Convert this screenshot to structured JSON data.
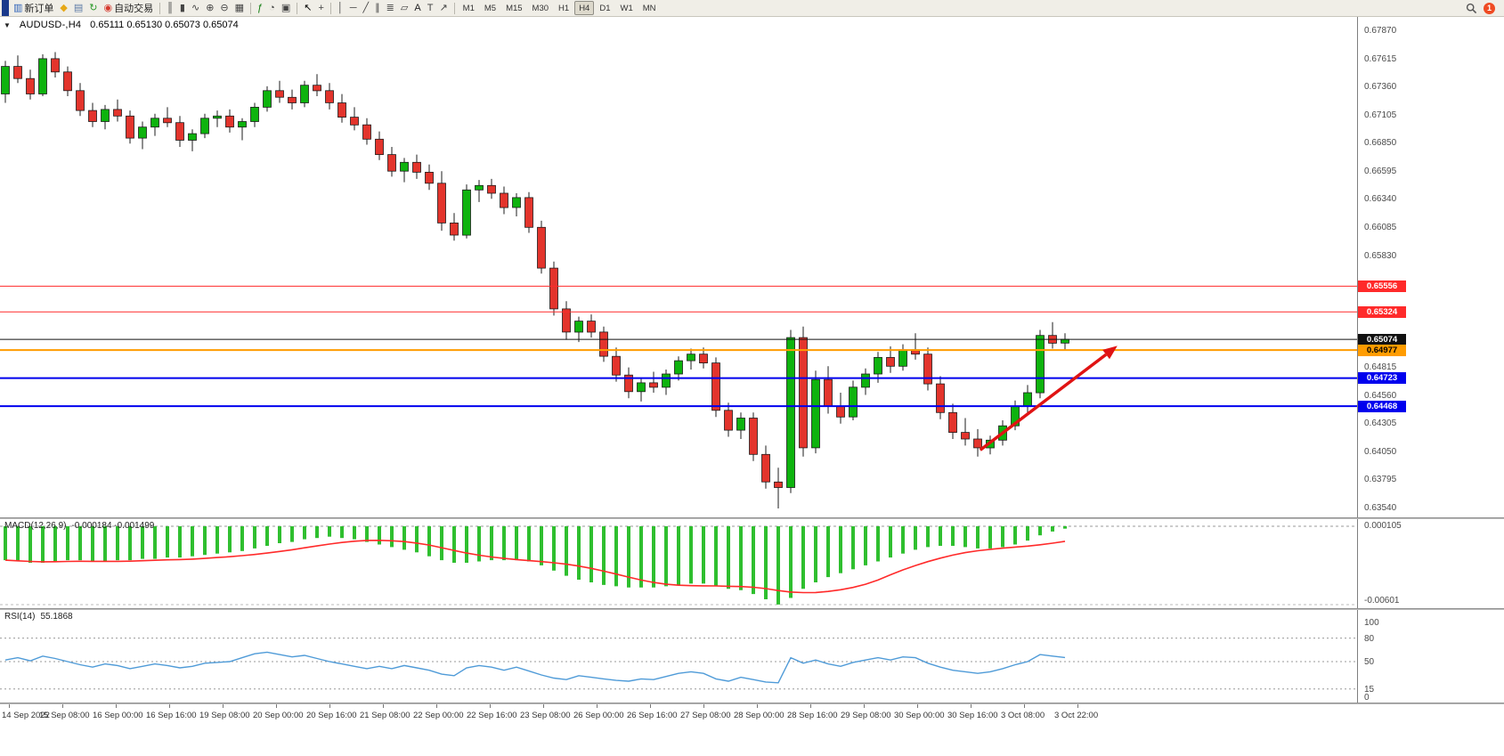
{
  "toolbar": {
    "notification_count": "1",
    "active_timeframe": "H4",
    "items": [
      {
        "t": "btn",
        "icon": "new-order-icon",
        "label": "新订单"
      },
      {
        "t": "btn",
        "icon": "diamond-icon"
      },
      {
        "t": "btn",
        "icon": "print-icon"
      },
      {
        "t": "btn",
        "icon": "refresh-icon"
      },
      {
        "t": "btn",
        "icon": "autotrade-icon",
        "label": "自动交易"
      },
      {
        "t": "sep"
      },
      {
        "t": "btn",
        "icon": "bar-chart-icon"
      },
      {
        "t": "btn",
        "icon": "candlestick-icon"
      },
      {
        "t": "btn",
        "icon": "line-chart-icon"
      },
      {
        "t": "btn",
        "icon": "zoom-in-icon"
      },
      {
        "t": "btn",
        "icon": "zoom-out-icon"
      },
      {
        "t": "btn",
        "icon": "tile-windows-icon"
      },
      {
        "t": "sep"
      },
      {
        "t": "btn",
        "icon": "indicators-icon"
      },
      {
        "t": "btn",
        "icon": "period-icon"
      },
      {
        "t": "btn",
        "icon": "template-icon"
      },
      {
        "t": "sep"
      },
      {
        "t": "btn",
        "icon": "cursor-icon"
      },
      {
        "t": "btn",
        "icon": "crosshair-icon"
      },
      {
        "t": "sep"
      },
      {
        "t": "btn",
        "icon": "vline-icon"
      },
      {
        "t": "btn",
        "icon": "hline-icon"
      },
      {
        "t": "btn",
        "icon": "trendline-icon"
      },
      {
        "t": "btn",
        "icon": "channel-icon"
      },
      {
        "t": "btn",
        "icon": "fibo-icon"
      },
      {
        "t": "btn",
        "icon": "shapes-icon"
      },
      {
        "t": "btn",
        "icon": "text-icon"
      },
      {
        "t": "btn",
        "icon": "textlabel-icon"
      },
      {
        "t": "btn",
        "icon": "arrows-icon"
      },
      {
        "t": "sep"
      },
      {
        "t": "tf",
        "label": "M1"
      },
      {
        "t": "tf",
        "label": "M5"
      },
      {
        "t": "tf",
        "label": "M15"
      },
      {
        "t": "tf",
        "label": "M30"
      },
      {
        "t": "tf",
        "label": "H1"
      },
      {
        "t": "tf",
        "label": "H4"
      },
      {
        "t": "tf",
        "label": "D1"
      },
      {
        "t": "tf",
        "label": "W1"
      },
      {
        "t": "tf",
        "label": "MN"
      }
    ]
  },
  "chart": {
    "title_symbol": "AUDUSD-,H4",
    "title_ohlc": "0.65111 0.65130 0.65073 0.65074"
  },
  "colors": {
    "up": "#0eb30e",
    "down": "#e3342c",
    "candle_outline": "#1c1c1c",
    "macd_hist": "#2fbf2f",
    "macd_signal": "#ff2a2a",
    "rsi_line": "#4f9bd8",
    "arrow": "#e01313"
  },
  "chart_data": {
    "type": "candlestick",
    "symbol": "AUDUSD-",
    "timeframe": "H4",
    "ohlc_header": {
      "open": "0.65111",
      "high": "0.65130",
      "low": "0.65073",
      "close": "0.65074"
    },
    "price_axis": {
      "min": 0.6354,
      "max": 0.6787,
      "tick_step": 0.00255,
      "visible_ticks": [
        "0.67870",
        "0.67615",
        "0.67360",
        "0.67105",
        "0.66850",
        "0.66595",
        "0.66340",
        "0.66085",
        "0.65830",
        "0.64815",
        "0.64560",
        "0.64305",
        "0.64050",
        "0.63795",
        "0.63540"
      ]
    },
    "levels": [
      {
        "price": 0.65556,
        "label": "0.65556",
        "color": "#ff2a2a",
        "badge_text": "#ffffff",
        "stroke_w": 1,
        "type": "resistance-line"
      },
      {
        "price": 0.65324,
        "label": "0.65324",
        "color": "#ff2a2a",
        "badge_text": "#ffffff",
        "stroke_w": 1,
        "type": "resistance-line"
      },
      {
        "price": 0.65074,
        "label": "0.65074",
        "color": "#111111",
        "badge_text": "#ffffff",
        "stroke_w": 1,
        "type": "current-price-line"
      },
      {
        "price": 0.64977,
        "label": "0.64977",
        "color": "#ff9c00",
        "badge_text": "#000000",
        "stroke_w": 2,
        "type": "support-line"
      },
      {
        "price": 0.64723,
        "label": "0.64723",
        "color": "#0000ee",
        "badge_text": "#ffffff",
        "stroke_w": 2,
        "type": "support-line"
      },
      {
        "price": 0.64468,
        "label": "0.64468",
        "color": "#0000ee",
        "badge_text": "#ffffff",
        "stroke_w": 2,
        "type": "support-line"
      }
    ],
    "candles": [
      [
        0.673,
        0.676,
        0.6722,
        0.6755
      ],
      [
        0.6755,
        0.6765,
        0.674,
        0.6744
      ],
      [
        0.6744,
        0.6752,
        0.6725,
        0.673
      ],
      [
        0.673,
        0.6766,
        0.6728,
        0.6762
      ],
      [
        0.6762,
        0.6768,
        0.6745,
        0.675
      ],
      [
        0.675,
        0.6755,
        0.6728,
        0.6733
      ],
      [
        0.6733,
        0.674,
        0.671,
        0.6715
      ],
      [
        0.6715,
        0.6722,
        0.67,
        0.6705
      ],
      [
        0.6705,
        0.672,
        0.6698,
        0.6716
      ],
      [
        0.6716,
        0.6725,
        0.6705,
        0.671
      ],
      [
        0.671,
        0.6715,
        0.6685,
        0.669
      ],
      [
        0.669,
        0.6705,
        0.668,
        0.67
      ],
      [
        0.67,
        0.6712,
        0.6692,
        0.6708
      ],
      [
        0.6708,
        0.6718,
        0.67,
        0.6704
      ],
      [
        0.6704,
        0.671,
        0.6682,
        0.6688
      ],
      [
        0.6688,
        0.6698,
        0.6678,
        0.6694
      ],
      [
        0.6694,
        0.6712,
        0.669,
        0.6708
      ],
      [
        0.6708,
        0.6715,
        0.67,
        0.671
      ],
      [
        0.671,
        0.6716,
        0.6695,
        0.67
      ],
      [
        0.67,
        0.6708,
        0.6688,
        0.6705
      ],
      [
        0.6705,
        0.6722,
        0.67,
        0.6718
      ],
      [
        0.6718,
        0.6737,
        0.6714,
        0.6733
      ],
      [
        0.6733,
        0.6742,
        0.6722,
        0.6727
      ],
      [
        0.6727,
        0.6734,
        0.6716,
        0.6722
      ],
      [
        0.6722,
        0.6742,
        0.6718,
        0.6738
      ],
      [
        0.6738,
        0.6748,
        0.6728,
        0.6733
      ],
      [
        0.6733,
        0.674,
        0.6716,
        0.6722
      ],
      [
        0.6722,
        0.673,
        0.6704,
        0.6709
      ],
      [
        0.6709,
        0.6718,
        0.6697,
        0.6702
      ],
      [
        0.6702,
        0.6708,
        0.6684,
        0.6689
      ],
      [
        0.6689,
        0.6696,
        0.667,
        0.6675
      ],
      [
        0.6675,
        0.6682,
        0.6655,
        0.666
      ],
      [
        0.666,
        0.6672,
        0.665,
        0.6668
      ],
      [
        0.6668,
        0.6675,
        0.6653,
        0.6659
      ],
      [
        0.6659,
        0.6666,
        0.6643,
        0.6649
      ],
      [
        0.6649,
        0.666,
        0.6606,
        0.6613
      ],
      [
        0.6613,
        0.6622,
        0.6597,
        0.6602
      ],
      [
        0.6602,
        0.6648,
        0.6599,
        0.6643
      ],
      [
        0.6643,
        0.6652,
        0.6632,
        0.6647
      ],
      [
        0.6647,
        0.6653,
        0.6635,
        0.664
      ],
      [
        0.664,
        0.6646,
        0.6621,
        0.6627
      ],
      [
        0.6627,
        0.664,
        0.6619,
        0.6636
      ],
      [
        0.6636,
        0.6641,
        0.6604,
        0.6609
      ],
      [
        0.6609,
        0.6615,
        0.6567,
        0.6572
      ],
      [
        0.6572,
        0.6578,
        0.6529,
        0.6535
      ],
      [
        0.6535,
        0.6542,
        0.6507,
        0.6514
      ],
      [
        0.6514,
        0.6528,
        0.6505,
        0.6524
      ],
      [
        0.6524,
        0.653,
        0.6509,
        0.6514
      ],
      [
        0.6514,
        0.6519,
        0.6487,
        0.6492
      ],
      [
        0.6492,
        0.65,
        0.6469,
        0.6475
      ],
      [
        0.6475,
        0.6482,
        0.6454,
        0.646
      ],
      [
        0.646,
        0.6472,
        0.6451,
        0.6468
      ],
      [
        0.6468,
        0.6478,
        0.6459,
        0.6464
      ],
      [
        0.6464,
        0.648,
        0.6457,
        0.6476
      ],
      [
        0.6476,
        0.6492,
        0.647,
        0.6488
      ],
      [
        0.6488,
        0.6499,
        0.648,
        0.6494
      ],
      [
        0.6494,
        0.65,
        0.6481,
        0.6486
      ],
      [
        0.6486,
        0.6491,
        0.6437,
        0.6443
      ],
      [
        0.6443,
        0.645,
        0.6419,
        0.6425
      ],
      [
        0.6425,
        0.6441,
        0.6417,
        0.6436
      ],
      [
        0.6436,
        0.6441,
        0.6397,
        0.6403
      ],
      [
        0.6403,
        0.6411,
        0.6372,
        0.6378
      ],
      [
        0.6378,
        0.6391,
        0.6354,
        0.6373
      ],
      [
        0.6373,
        0.6516,
        0.6368,
        0.6509
      ],
      [
        0.6509,
        0.6519,
        0.6401,
        0.6409
      ],
      [
        0.6409,
        0.6479,
        0.6404,
        0.6471
      ],
      [
        0.6471,
        0.6483,
        0.644,
        0.6447
      ],
      [
        0.6447,
        0.6459,
        0.6431,
        0.6437
      ],
      [
        0.6437,
        0.647,
        0.6434,
        0.6464
      ],
      [
        0.6464,
        0.6481,
        0.6457,
        0.6476
      ],
      [
        0.6476,
        0.6496,
        0.6468,
        0.6491
      ],
      [
        0.6491,
        0.6501,
        0.6477,
        0.6483
      ],
      [
        0.6483,
        0.6503,
        0.6479,
        0.6498
      ],
      [
        0.6498,
        0.6513,
        0.6489,
        0.6494
      ],
      [
        0.6494,
        0.65,
        0.6461,
        0.6467
      ],
      [
        0.6467,
        0.6474,
        0.6435,
        0.6441
      ],
      [
        0.6441,
        0.6449,
        0.6417,
        0.6423
      ],
      [
        0.6423,
        0.6436,
        0.6411,
        0.6417
      ],
      [
        0.6417,
        0.6426,
        0.6401,
        0.6409
      ],
      [
        0.6409,
        0.642,
        0.6403,
        0.6416
      ],
      [
        0.6416,
        0.6434,
        0.6411,
        0.6429
      ],
      [
        0.6429,
        0.6452,
        0.6425,
        0.6447
      ],
      [
        0.6447,
        0.6466,
        0.6441,
        0.6459
      ],
      [
        0.6459,
        0.6516,
        0.6454,
        0.6511
      ],
      [
        0.6511,
        0.6523,
        0.6499,
        0.6504
      ],
      [
        0.6504,
        0.6513,
        0.6497,
        0.65074
      ]
    ],
    "time_labels": [
      "14 Sep 2022",
      "15 Sep 08:00",
      "16 Sep 00:00",
      "16 Sep 16:00",
      "19 Sep 08:00",
      "20 Sep 00:00",
      "20 Sep 16:00",
      "21 Sep 08:00",
      "22 Sep 00:00",
      "22 Sep 16:00",
      "23 Sep 08:00",
      "26 Sep 00:00",
      "26 Sep 16:00",
      "27 Sep 08:00",
      "28 Sep 00:00",
      "28 Sep 16:00",
      "29 Sep 08:00",
      "30 Sep 00:00",
      "30 Sep 16:00",
      "3 Oct 08:00",
      "3 Oct 22:00"
    ],
    "macd": {
      "label": "MACD(12,26,9)",
      "values_text": "-0.000184 -0.001499",
      "max_label": "0.000105",
      "min_label": "-0.00601",
      "histogram": [
        -0.0026,
        -0.0027,
        -0.0028,
        -0.0028,
        -0.0027,
        -0.0026,
        -0.0026,
        -0.0027,
        -0.0027,
        -0.0026,
        -0.0026,
        -0.0025,
        -0.0025,
        -0.0024,
        -0.0024,
        -0.0023,
        -0.0022,
        -0.0021,
        -0.002,
        -0.0019,
        -0.0017,
        -0.0015,
        -0.0013,
        -0.0012,
        -0.001,
        -0.0009,
        -0.0008,
        -0.0009,
        -0.001,
        -0.0012,
        -0.0014,
        -0.0016,
        -0.0018,
        -0.002,
        -0.0023,
        -0.0026,
        -0.0028,
        -0.0028,
        -0.0027,
        -0.0026,
        -0.0026,
        -0.0026,
        -0.0027,
        -0.003,
        -0.0034,
        -0.0038,
        -0.0041,
        -0.0043,
        -0.0045,
        -0.0046,
        -0.0047,
        -0.0047,
        -0.0047,
        -0.0046,
        -0.0045,
        -0.0044,
        -0.0044,
        -0.0046,
        -0.0048,
        -0.0049,
        -0.0052,
        -0.0056,
        -0.006,
        -0.0055,
        -0.0048,
        -0.0043,
        -0.0039,
        -0.0036,
        -0.0033,
        -0.003,
        -0.0027,
        -0.0024,
        -0.0021,
        -0.0018,
        -0.0016,
        -0.0015,
        -0.0015,
        -0.0016,
        -0.0017,
        -0.0017,
        -0.0016,
        -0.0014,
        -0.0011,
        -0.0007,
        -0.0004,
        -0.000184
      ]
    },
    "rsi": {
      "label": "RSI(14)",
      "value_text": "55.1868",
      "levels": [
        80,
        50,
        15
      ],
      "scale_labels": [
        "100",
        "80",
        "50",
        "15",
        "0"
      ],
      "values": [
        52,
        55,
        51,
        57,
        54,
        50,
        46,
        43,
        47,
        45,
        41,
        44,
        47,
        45,
        42,
        44,
        48,
        49,
        50,
        55,
        60,
        62,
        59,
        56,
        58,
        54,
        50,
        47,
        44,
        41,
        44,
        41,
        45,
        42,
        39,
        34,
        32,
        42,
        45,
        43,
        39,
        43,
        38,
        33,
        29,
        27,
        32,
        30,
        28,
        26,
        25,
        28,
        27,
        31,
        35,
        37,
        35,
        28,
        25,
        30,
        27,
        24,
        23,
        55,
        48,
        52,
        47,
        44,
        49,
        52,
        55,
        52,
        56,
        55,
        48,
        43,
        39,
        37,
        35,
        37,
        41,
        46,
        50,
        59,
        57,
        55.1868
      ]
    },
    "annotation_arrow": {
      "from_index": 78.2,
      "from_price": 0.6407,
      "to_index": 89.2,
      "to_price": 0.65015
    }
  }
}
